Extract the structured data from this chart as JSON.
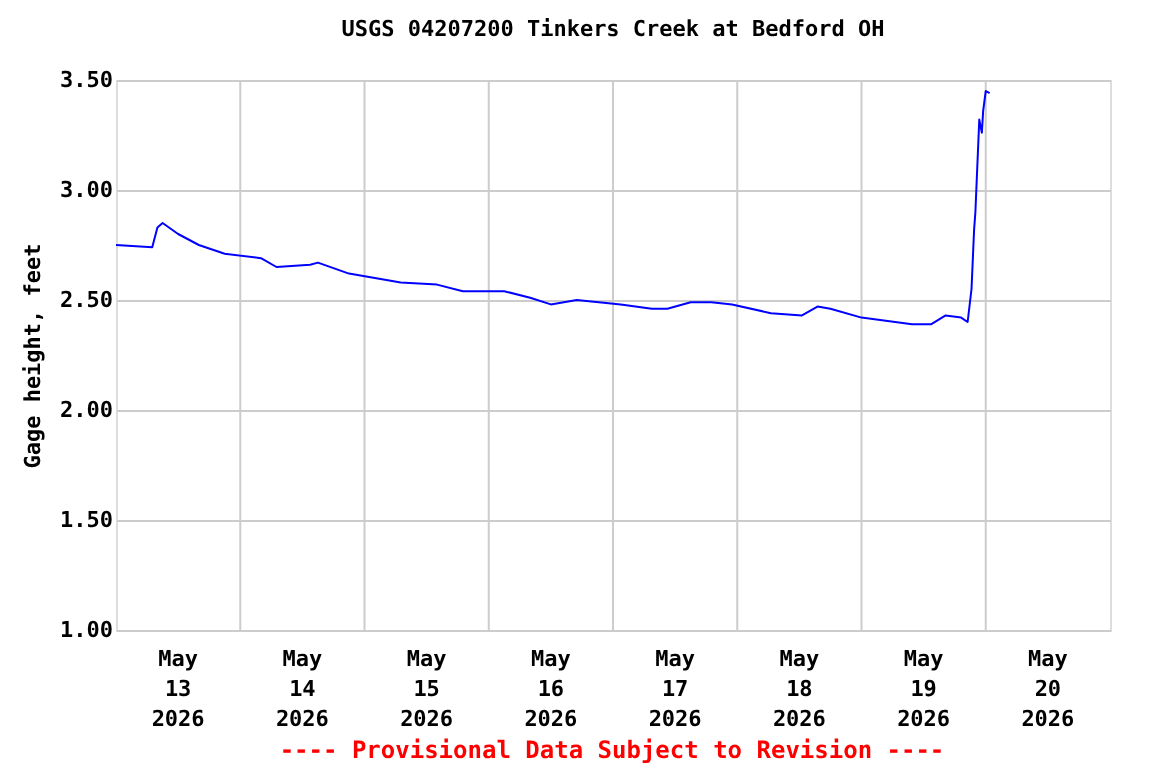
{
  "chart_data": {
    "type": "line",
    "title": "USGS 04207200 Tinkers Creek at Bedford OH",
    "ylabel": "Gage height, feet",
    "annotations": [
      "---- Provisional Data Subject to Revision ----"
    ],
    "x": [
      "2026-05-13T00:00",
      "2026-05-13T07:00",
      "2026-05-13T08:00",
      "2026-05-13T09:00",
      "2026-05-13T12:00",
      "2026-05-13T16:00",
      "2026-05-13T21:00",
      "2026-05-14T04:00",
      "2026-05-14T07:00",
      "2026-05-14T13:30",
      "2026-05-14T15:00",
      "2026-05-14T21:00",
      "2026-05-15T07:00",
      "2026-05-15T14:00",
      "2026-05-15T19:00",
      "2026-05-16T03:00",
      "2026-05-16T08:00",
      "2026-05-16T12:00",
      "2026-05-16T17:00",
      "2026-05-17T01:30",
      "2026-05-17T07:30",
      "2026-05-17T10:30",
      "2026-05-17T15:00",
      "2026-05-17T19:00",
      "2026-05-17T23:00",
      "2026-05-18T06:30",
      "2026-05-18T12:30",
      "2026-05-18T15:30",
      "2026-05-18T18:00",
      "2026-05-19T00:00",
      "2026-05-19T09:45",
      "2026-05-19T13:30",
      "2026-05-19T16:15",
      "2026-05-19T19:15",
      "2026-05-19T20:30",
      "2026-05-19T21:15",
      "2026-05-19T21:45",
      "2026-05-19T22:00",
      "2026-05-19T22:45",
      "2026-05-19T23:15",
      "2026-05-19T23:30",
      "2026-05-20T00:00",
      "2026-05-20T00:45"
    ],
    "series": [
      {
        "color": "#0000ff",
        "values": [
          2.75,
          2.74,
          2.83,
          2.85,
          2.8,
          2.75,
          2.71,
          2.69,
          2.65,
          2.66,
          2.67,
          2.62,
          2.58,
          2.57,
          2.54,
          2.54,
          2.51,
          2.48,
          2.5,
          2.48,
          2.46,
          2.46,
          2.49,
          2.49,
          2.48,
          2.44,
          2.43,
          2.47,
          2.46,
          2.42,
          2.39,
          2.39,
          2.43,
          2.42,
          2.4,
          2.55,
          2.82,
          2.9,
          3.32,
          3.26,
          3.36,
          3.45,
          3.44
        ]
      }
    ],
    "xlim": [
      "2026-05-13T00:00",
      "2026-05-21T00:00"
    ],
    "xticks": [
      {
        "value": "2026-05-13T12:00",
        "label": "May 13 2026"
      },
      {
        "value": "2026-05-14T12:00",
        "label": "May 14 2026"
      },
      {
        "value": "2026-05-15T12:00",
        "label": "May 15 2026"
      },
      {
        "value": "2026-05-16T12:00",
        "label": "May 16 2026"
      },
      {
        "value": "2026-05-17T12:00",
        "label": "May 17 2026"
      },
      {
        "value": "2026-05-18T12:00",
        "label": "May 18 2026"
      },
      {
        "value": "2026-05-19T12:00",
        "label": "May 19 2026"
      },
      {
        "value": "2026-05-20T12:00",
        "label": "May 20 2026"
      },
      {
        "value": "2026-05-14T00:00",
        "label": null
      },
      {
        "value": "2026-05-15T00:00",
        "label": null
      },
      {
        "value": "2026-05-16T00:00",
        "label": null
      },
      {
        "value": "2026-05-17T00:00",
        "label": null
      },
      {
        "value": "2026-05-18T00:00",
        "label": null
      },
      {
        "value": "2026-05-19T00:00",
        "label": null
      },
      {
        "value": "2026-05-20T00:00",
        "label": null
      }
    ],
    "ylim": [
      1.0,
      3.5
    ],
    "yticks": [
      {
        "value": 1.0,
        "label": "1.00"
      },
      {
        "value": 1.5,
        "label": "1.50"
      },
      {
        "value": 2.0,
        "label": "2.00"
      },
      {
        "value": 2.5,
        "label": "2.50"
      },
      {
        "value": 3.0,
        "label": "3.00"
      },
      {
        "value": 3.5,
        "label": "3.50"
      }
    ],
    "grid": true,
    "legend": false
  }
}
